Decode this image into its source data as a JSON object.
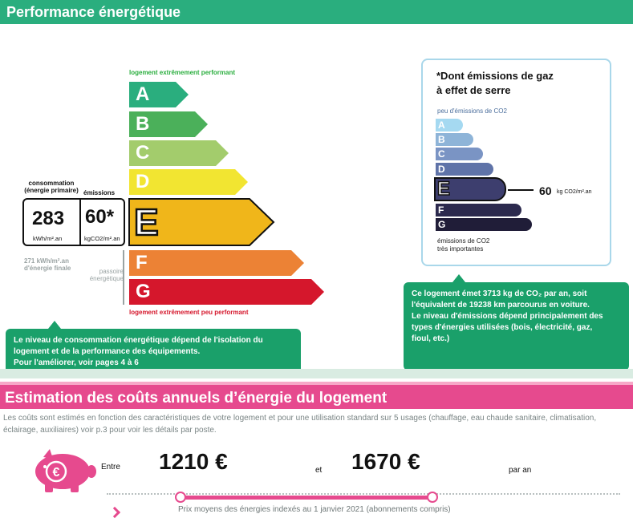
{
  "performance": {
    "title": "Performance énergétique",
    "caption_top": "logement extrêmement performant",
    "caption_bottom": "logement extrêmement peu performant",
    "classes": [
      {
        "letter": "A",
        "color": "#2aae7e"
      },
      {
        "letter": "B",
        "color": "#4bb05a"
      },
      {
        "letter": "C",
        "color": "#a3cc6c"
      },
      {
        "letter": "D",
        "color": "#f2e531"
      },
      {
        "letter": "E",
        "color": "#f0b61a"
      },
      {
        "letter": "F",
        "color": "#ec8235"
      },
      {
        "letter": "G",
        "color": "#d5172c"
      }
    ],
    "current_class": "E",
    "consumption_label": "consommation (énergie primaire)",
    "emissions_label": "émissions",
    "consumption_value": "283",
    "consumption_unit": "kWh/m².an",
    "emissions_value": "60*",
    "emissions_unit": "kgCO2/m².an",
    "final_energy": "271 kWh/m².an d'énergie finale",
    "passoire": "passoire énergétique",
    "callout": [
      "Le niveau de consommation énergétique dépend de l'isolation du",
      "logement et de la performance des équipements.",
      "Pour l'améliorer, voir pages 4 à 6"
    ]
  },
  "ges": {
    "title_line1": "*Dont émissions de gaz",
    "title_line2": "à effet de serre",
    "caption_top": "peu d'émissions de CO2",
    "caption_bottom_line1": "émissions de CO2",
    "caption_bottom_line2": "très importantes",
    "classes": [
      {
        "letter": "A",
        "color": "#a5d9f1"
      },
      {
        "letter": "B",
        "color": "#8eb4d8"
      },
      {
        "letter": "C",
        "color": "#7a94c4"
      },
      {
        "letter": "D",
        "color": "#5f73a8"
      },
      {
        "letter": "E",
        "color": "#3d3e6e"
      },
      {
        "letter": "F",
        "color": "#2c2a4e"
      },
      {
        "letter": "G",
        "color": "#201d38"
      }
    ],
    "current_class": "E",
    "value": "60",
    "unit": "kg CO2/m².an",
    "callout": [
      "Ce logement émet 3713 kg de CO₂ par an, soit",
      "l'équivalent de 19238  km parcourus en voiture.",
      "Le niveau d'émissions dépend principalement des",
      "types d'énergies utilisées (bois, électricité, gaz,",
      "fioul, etc.)"
    ]
  },
  "costs": {
    "title": "Estimation des coûts annuels d’énergie du logement",
    "description": "Les coûts sont estimés en fonction des caractéristiques de votre logement et pour une utilisation standard sur 5 usages (chauffage, eau chaude sanitaire, climatisation, éclairage, auxiliaires) voir p.3 pour voir les détails par poste.",
    "between_label": "Entre",
    "and_label": "et",
    "per_year_label": "par an",
    "low": "1210 €",
    "high": "1670 €",
    "note": "Prix moyens des énergies indexés au 1 janvier 2021 (abonnements compris)",
    "accent_color": "#e64a8e"
  }
}
